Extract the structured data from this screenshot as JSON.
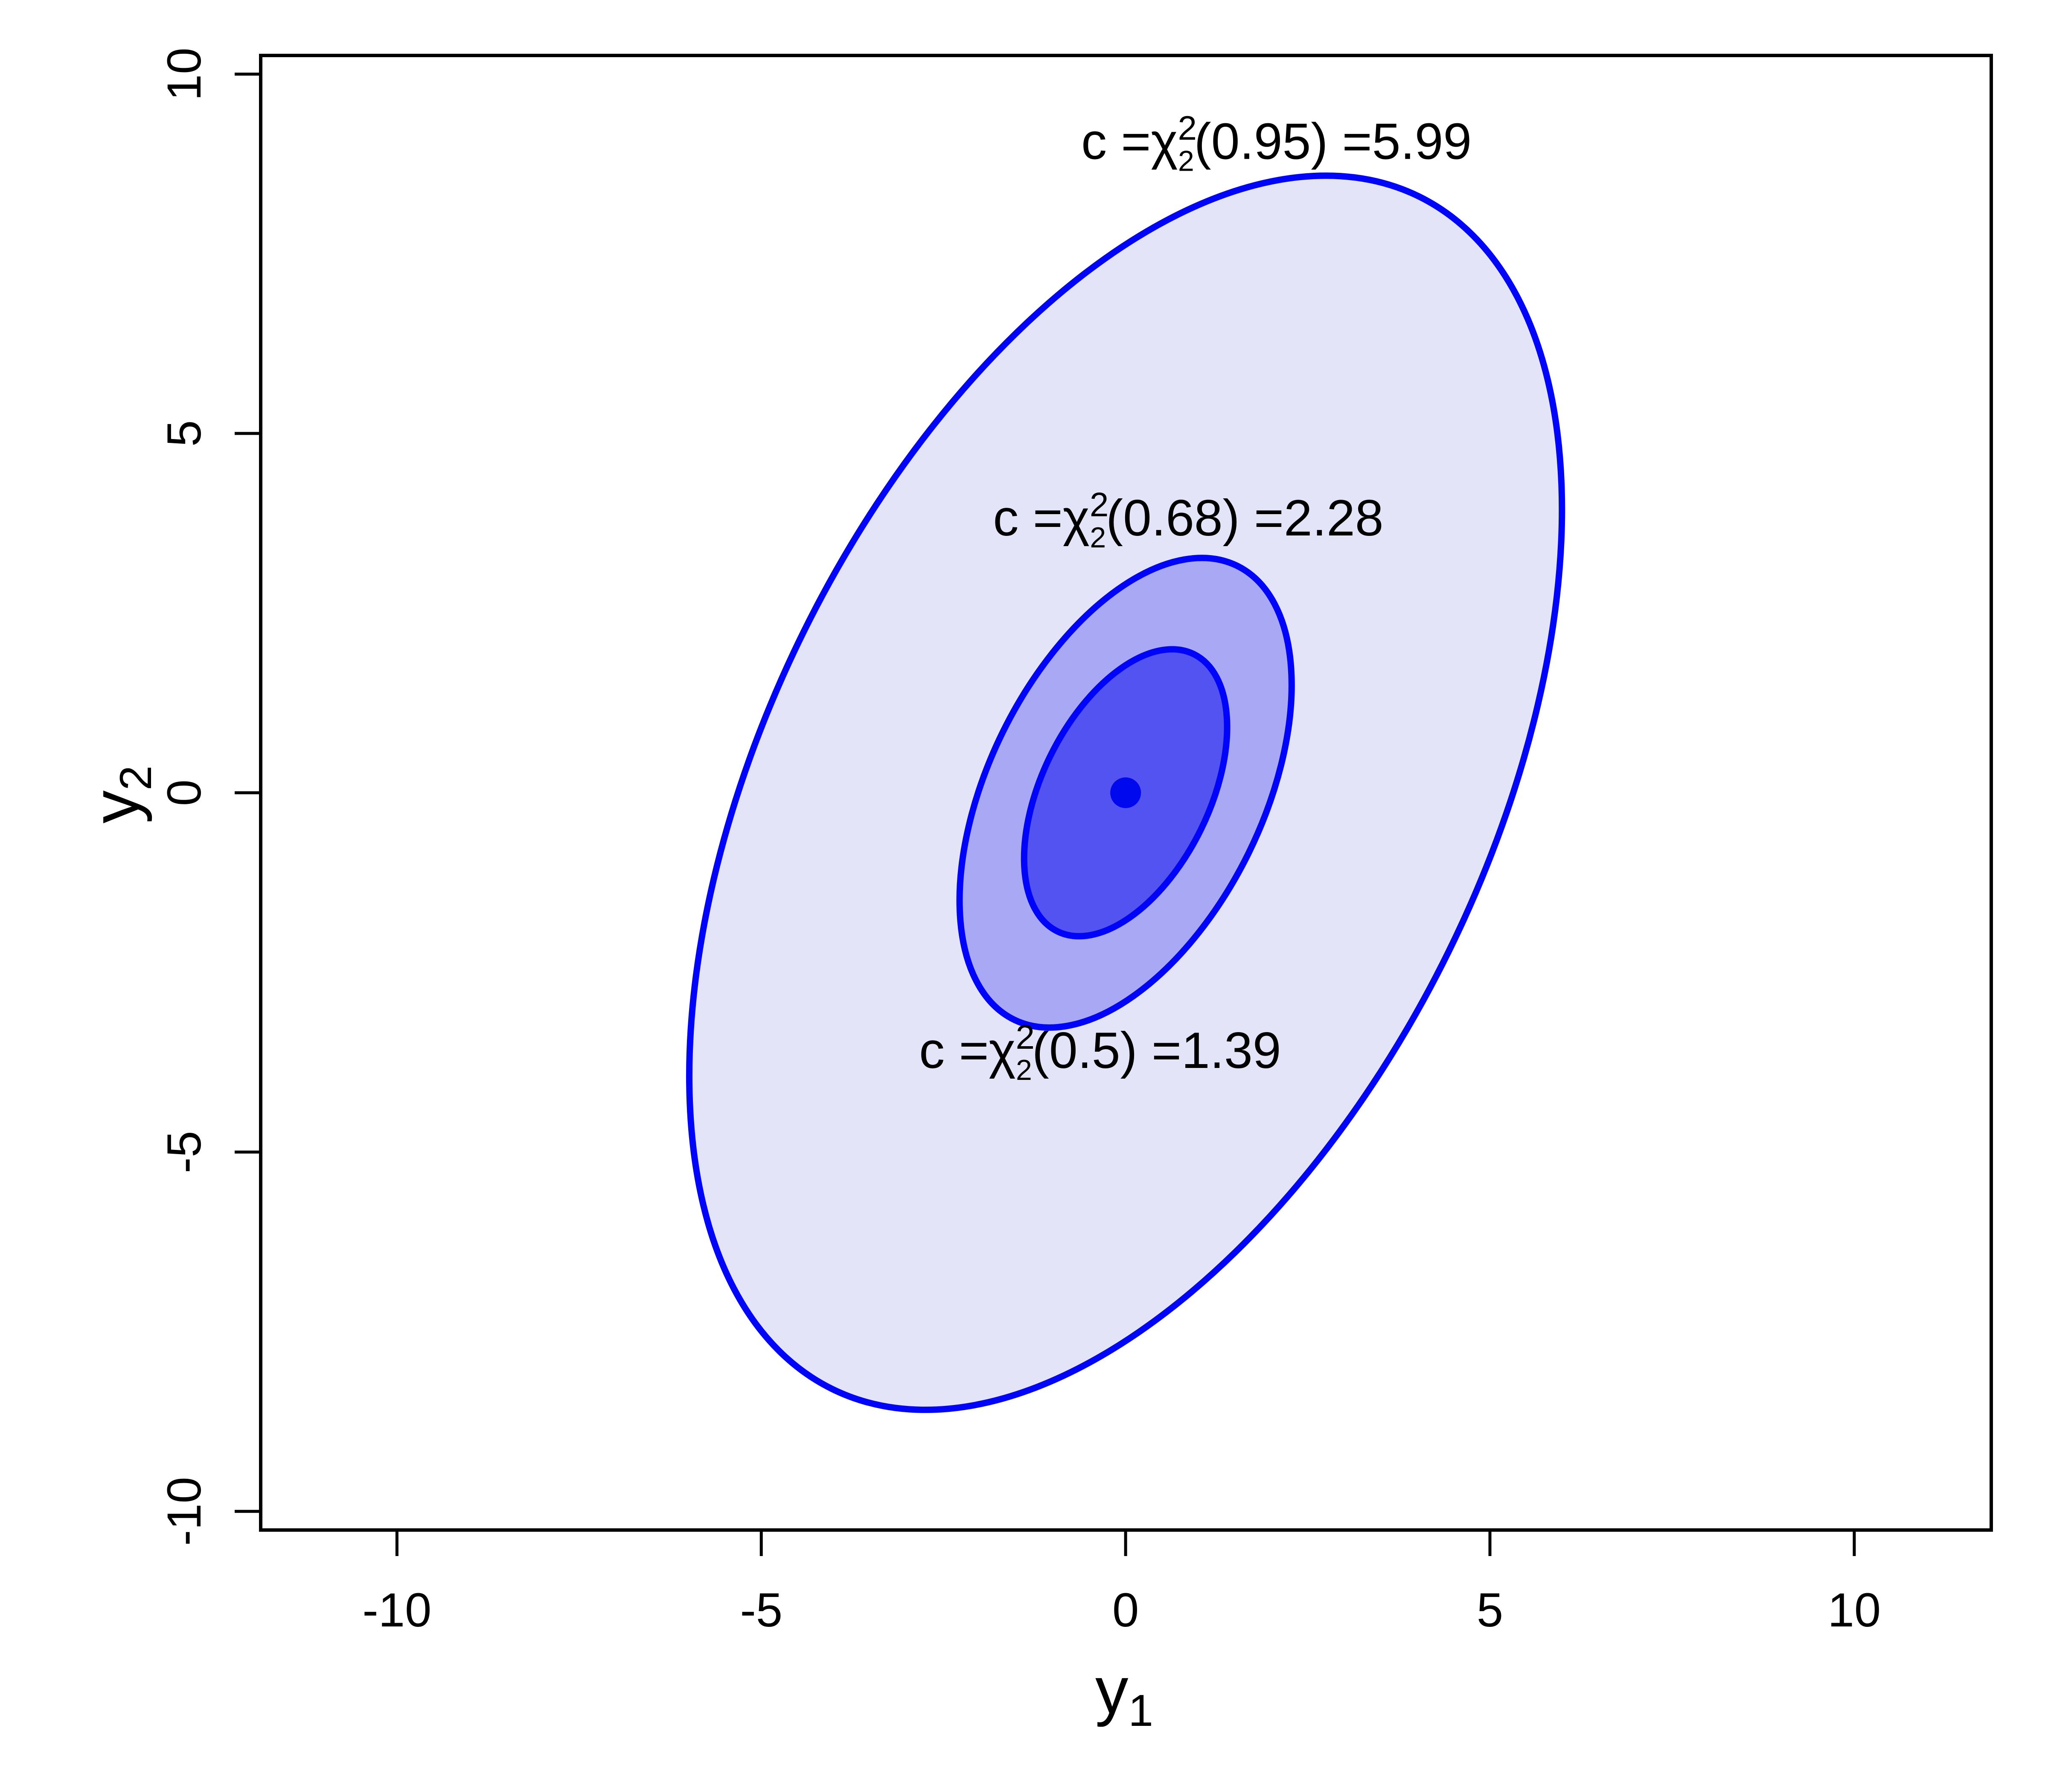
{
  "chart_data": {
    "type": "contour-ellipses",
    "description": "Nested bivariate chi-square confidence ellipses centered at the origin",
    "title": "",
    "xlabel": {
      "base": "y",
      "sub": "1"
    },
    "ylabel": {
      "base": "y",
      "sub": "2"
    },
    "xlim": [
      -11.87,
      11.88
    ],
    "ylim": [
      -10.26,
      10.26
    ],
    "x_ticks": [
      -10,
      -5,
      0,
      5,
      10
    ],
    "y_ticks": [
      -10,
      -5,
      0,
      5,
      10
    ],
    "grid": "off",
    "legend": "none",
    "ellipse_orientation_deg": 63.8,
    "outline_color": "#0005fa",
    "frame_color": "#000000",
    "text_color": "#000000",
    "center_dot": {
      "x": 0,
      "y": 0,
      "radius_px": 36,
      "color": "#0008ee"
    },
    "ellipses": [
      {
        "name": "95% contour",
        "prob": 0.95,
        "c": 5.99,
        "semi_major": 9.12,
        "semi_minor": 4.94,
        "fill": "#e4e4f9",
        "label": {
          "prefix": "c =χ",
          "sup": "2",
          "sub": "2",
          "suffix": "(0.95) =5.99",
          "pos": {
            "x": 2.07,
            "y": 9.07
          }
        }
      },
      {
        "name": "68% contour",
        "prob": 0.68,
        "c": 2.28,
        "semi_major": 3.47,
        "semi_minor": 1.88,
        "fill": "#a8a8f5",
        "label": {
          "prefix": "c =χ",
          "sup": "2",
          "sub": "2",
          "suffix": "(0.68) =2.28",
          "pos": {
            "x": 0.86,
            "y": 3.83
          }
        }
      },
      {
        "name": "50% contour",
        "prob": 0.5,
        "c": 1.39,
        "semi_major": 2.12,
        "semi_minor": 1.15,
        "fill": "#5353f2",
        "label": {
          "prefix": "c =χ",
          "sup": "2",
          "sub": "2",
          "suffix": "(0.5) =1.39",
          "pos": {
            "x": -0.35,
            "y": -3.58
          }
        }
      }
    ]
  }
}
